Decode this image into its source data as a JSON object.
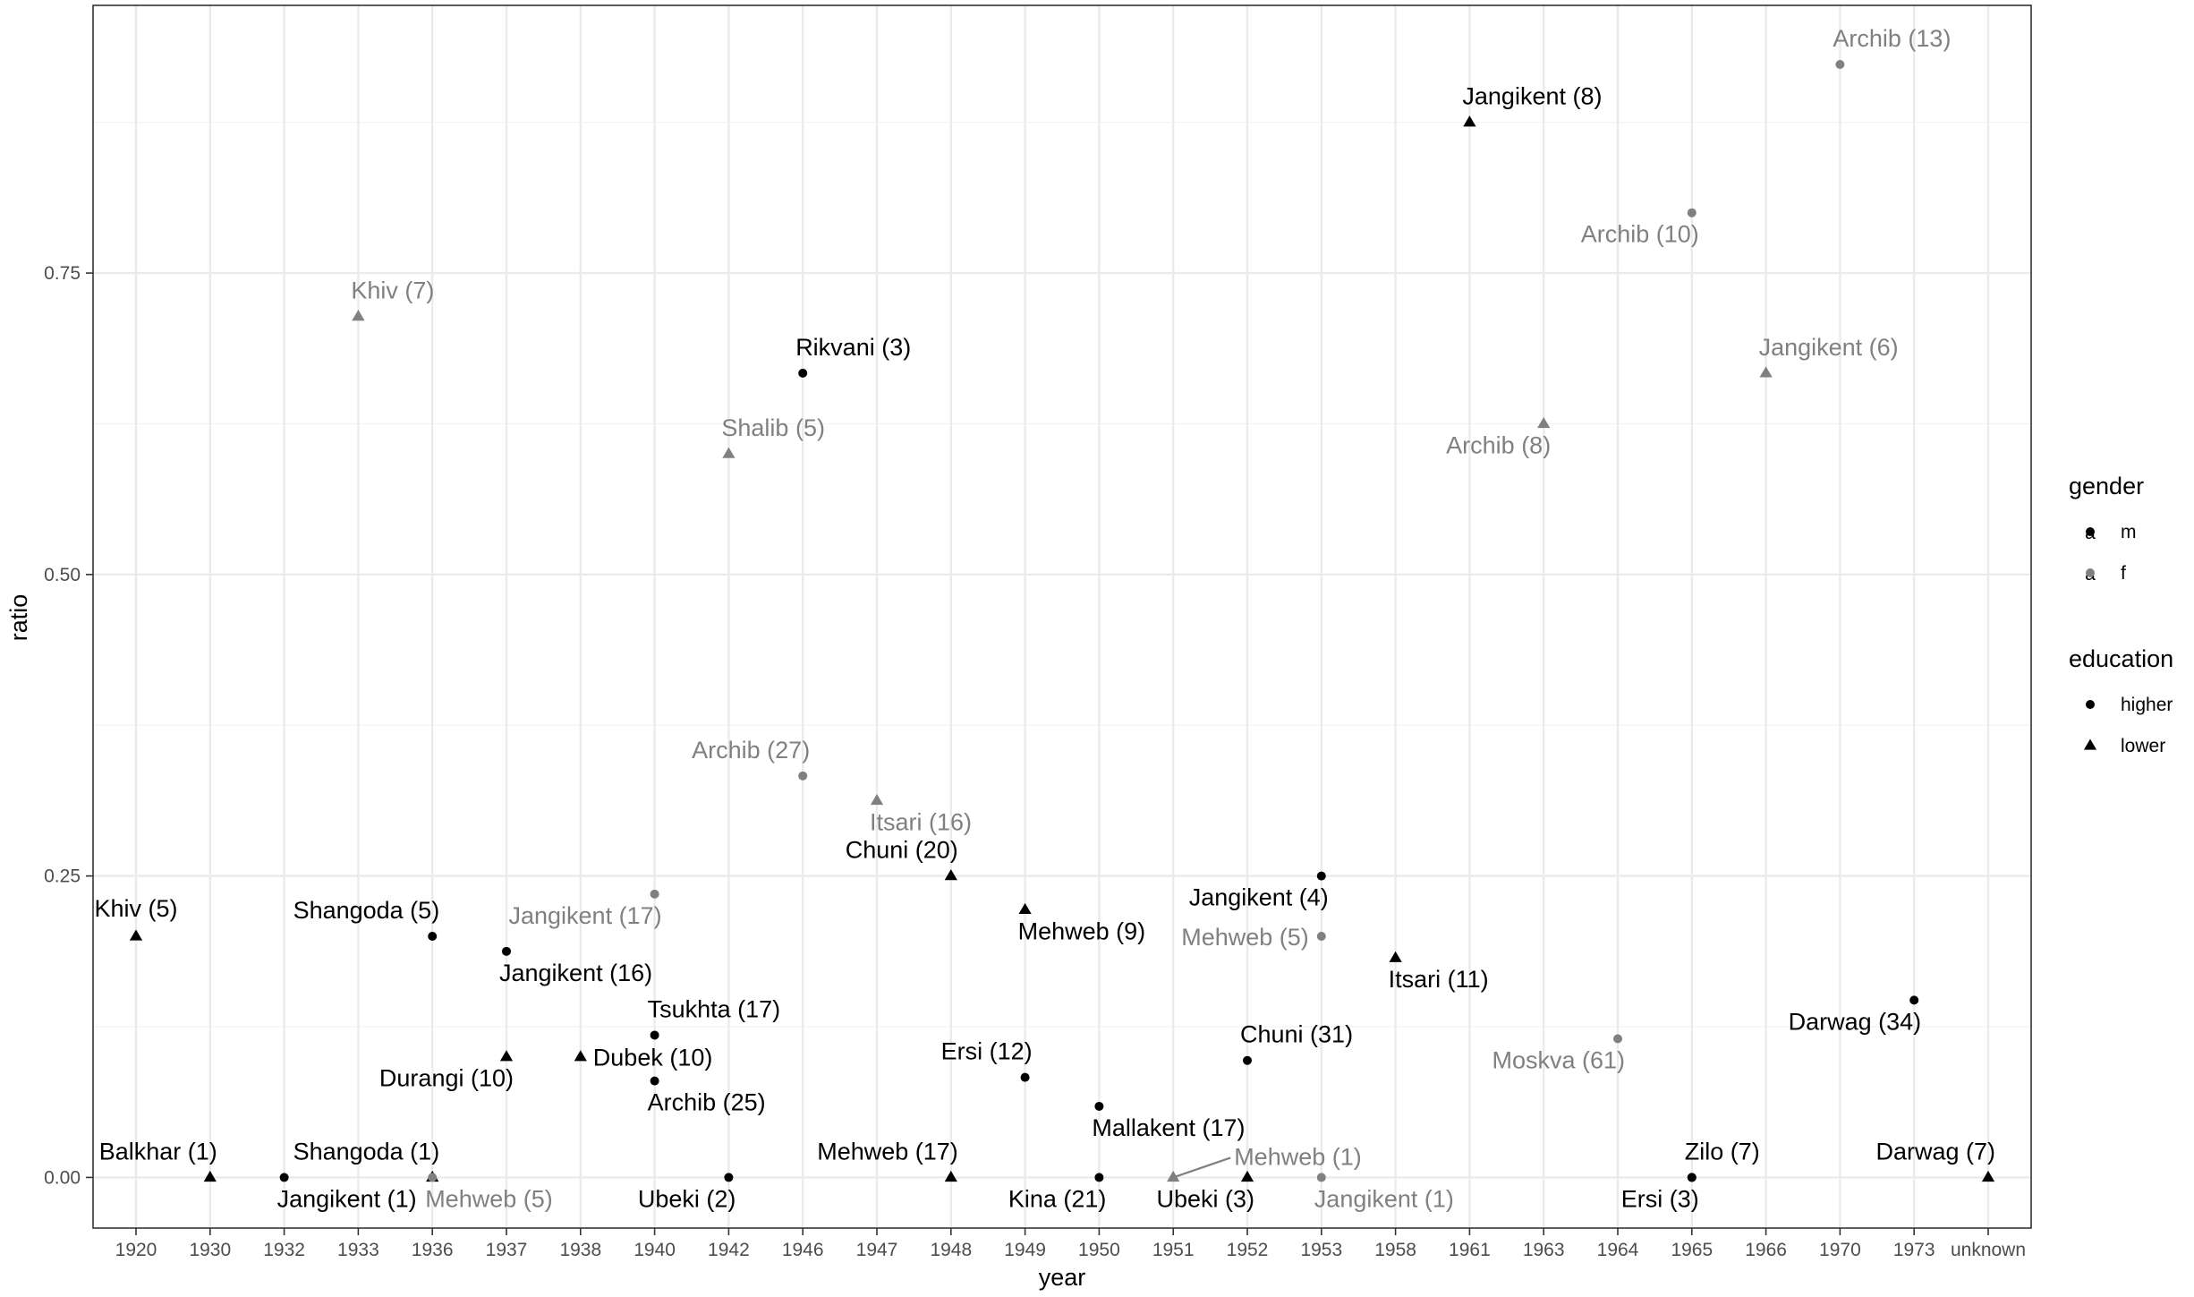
{
  "chart_data": {
    "type": "scatter",
    "xlabel": "year",
    "ylabel": "ratio",
    "x_categories": [
      "1920",
      "1930",
      "1932",
      "1933",
      "1936",
      "1937",
      "1938",
      "1940",
      "1942",
      "1946",
      "1947",
      "1948",
      "1949",
      "1950",
      "1951",
      "1952",
      "1953",
      "1958",
      "1961",
      "1963",
      "1964",
      "1965",
      "1966",
      "1970",
      "1973",
      "unknown"
    ],
    "ylim": [
      -0.042,
      0.972
    ],
    "y_ticks": [
      0.0,
      0.25,
      0.5,
      0.75
    ],
    "y_tick_labels": [
      "0.00",
      "0.25",
      "0.50",
      "0.75"
    ],
    "grid": true,
    "colors": {
      "m": "#000000",
      "f": "#808080"
    },
    "legend": {
      "placement": "right",
      "gender_title": "gender",
      "gender_items": [
        {
          "key": "m",
          "label": "m",
          "color": "#000000"
        },
        {
          "key": "f",
          "label": "f",
          "color": "#808080"
        }
      ],
      "gender_glyph": "a",
      "education_title": "education",
      "education_items": [
        {
          "key": "higher",
          "label": "higher",
          "shape": "circle"
        },
        {
          "key": "lower",
          "label": "lower",
          "shape": "triangle"
        }
      ]
    },
    "points": [
      {
        "x": "1920",
        "y": 0.2,
        "gender": "m",
        "education": "lower",
        "label": "Khiv (5)",
        "pos": "above"
      },
      {
        "x": "1930",
        "y": 0.0,
        "gender": "m",
        "education": "lower",
        "label": "Balkhar (1)",
        "pos": "above-left"
      },
      {
        "x": "1932",
        "y": 0.0,
        "gender": "m",
        "education": "higher",
        "label": "Jangikent (1)",
        "pos": "below-right"
      },
      {
        "x": "1933",
        "y": 0.714,
        "gender": "f",
        "education": "lower",
        "label": "Khiv (7)",
        "pos": "above-right"
      },
      {
        "x": "1936",
        "y": 0.2,
        "gender": "m",
        "education": "higher",
        "label": "Shangoda (5)",
        "pos": "above-left"
      },
      {
        "x": "1936",
        "y": 0.0,
        "gender": "m",
        "education": "lower",
        "label": "Shangoda (1)",
        "pos": "above-left"
      },
      {
        "x": "1936",
        "y": 0.0,
        "gender": "f",
        "education": "higher",
        "label": "Mehweb (5)",
        "pos": "below-right"
      },
      {
        "x": "1937",
        "y": 0.1875,
        "gender": "m",
        "education": "higher",
        "label": "Jangikent (16)",
        "pos": "below-right"
      },
      {
        "x": "1937",
        "y": 0.1,
        "gender": "m",
        "education": "lower",
        "label": "Durangi (10)",
        "pos": "below-left"
      },
      {
        "x": "1938",
        "y": 0.1,
        "gender": "m",
        "education": "lower",
        "label": "Dubek (10)",
        "pos": "right"
      },
      {
        "x": "1940",
        "y": 0.235,
        "gender": "f",
        "education": "higher",
        "label": "Jangikent (17)",
        "pos": "below-left"
      },
      {
        "x": "1940",
        "y": 0.118,
        "gender": "m",
        "education": "higher",
        "label": "Tsukhta (17)",
        "pos": "above-right"
      },
      {
        "x": "1940",
        "y": 0.08,
        "gender": "m",
        "education": "higher",
        "label": "Archib (25)",
        "pos": "below-right"
      },
      {
        "x": "1942",
        "y": 0.6,
        "gender": "f",
        "education": "lower",
        "label": "Shalib (5)",
        "pos": "above-right"
      },
      {
        "x": "1942",
        "y": 0.0,
        "gender": "m",
        "education": "higher",
        "label": "Ubeki (2)",
        "pos": "below-left"
      },
      {
        "x": "1946",
        "y": 0.667,
        "gender": "m",
        "education": "higher",
        "label": "Rikvani (3)",
        "pos": "above-right"
      },
      {
        "x": "1946",
        "y": 0.333,
        "gender": "f",
        "education": "higher",
        "label": "Archib (27)",
        "pos": "above-left"
      },
      {
        "x": "1947",
        "y": 0.3125,
        "gender": "f",
        "education": "lower",
        "label": "Itsari (16)",
        "pos": "below-right"
      },
      {
        "x": "1948",
        "y": 0.25,
        "gender": "m",
        "education": "lower",
        "label": "Chuni (20)",
        "pos": "above-left"
      },
      {
        "x": "1948",
        "y": 0.0,
        "gender": "m",
        "education": "lower",
        "label": "Mehweb (17)",
        "pos": "above-left"
      },
      {
        "x": "1949",
        "y": 0.222,
        "gender": "m",
        "education": "lower",
        "label": "Mehweb (9)",
        "pos": "below-right"
      },
      {
        "x": "1949",
        "y": 0.083,
        "gender": "m",
        "education": "higher",
        "label": "Ersi (12)",
        "pos": "above-left"
      },
      {
        "x": "1950",
        "y": 0.059,
        "gender": "m",
        "education": "higher",
        "label": "Mallakent (17)",
        "pos": "below-right"
      },
      {
        "x": "1950",
        "y": 0.0,
        "gender": "m",
        "education": "higher",
        "label": "Kina (21)",
        "pos": "below-left"
      },
      {
        "x": "1951",
        "y": 0.0,
        "gender": "f",
        "education": "lower",
        "label": "Mehweb (1)",
        "pos": "leader"
      },
      {
        "x": "1952",
        "y": 0.0,
        "gender": "m",
        "education": "lower",
        "label": "Ubeki (3)",
        "pos": "below-left"
      },
      {
        "x": "1952",
        "y": 0.097,
        "gender": "m",
        "education": "higher",
        "label": "Chuni (31)",
        "pos": "above-right"
      },
      {
        "x": "1953",
        "y": 0.25,
        "gender": "m",
        "education": "higher",
        "label": "Jangikent (4)",
        "pos": "below-left"
      },
      {
        "x": "1953",
        "y": 0.2,
        "gender": "f",
        "education": "higher",
        "label": "Mehweb (5)",
        "pos": "left"
      },
      {
        "x": "1953",
        "y": 0.0,
        "gender": "f",
        "education": "higher",
        "label": "Jangikent (1)",
        "pos": "below-right"
      },
      {
        "x": "1958",
        "y": 0.182,
        "gender": "m",
        "education": "lower",
        "label": "Itsari (11)",
        "pos": "below-right"
      },
      {
        "x": "1961",
        "y": 0.875,
        "gender": "m",
        "education": "lower",
        "label": "Jangikent (8)",
        "pos": "above-right"
      },
      {
        "x": "1963",
        "y": 0.625,
        "gender": "f",
        "education": "lower",
        "label": "Archib (8)",
        "pos": "below-left"
      },
      {
        "x": "1964",
        "y": 0.115,
        "gender": "f",
        "education": "higher",
        "label": "Moskva (61)",
        "pos": "below-left"
      },
      {
        "x": "1965",
        "y": 0.8,
        "gender": "f",
        "education": "higher",
        "label": "Archib (10)",
        "pos": "below-left"
      },
      {
        "x": "1965",
        "y": 0.0,
        "gender": "m",
        "education": "higher",
        "label": "Zilo (7)",
        "pos": "above-right"
      },
      {
        "x": "1965",
        "y": 0.0,
        "gender": "m",
        "education": "higher",
        "label": "Ersi (3)",
        "pos": "below-left"
      },
      {
        "x": "1966",
        "y": 0.667,
        "gender": "f",
        "education": "lower",
        "label": "Jangikent (6)",
        "pos": "above-right"
      },
      {
        "x": "1970",
        "y": 0.923,
        "gender": "f",
        "education": "higher",
        "label": "Archib (13)",
        "pos": "above-right"
      },
      {
        "x": "1973",
        "y": 0.147,
        "gender": "m",
        "education": "higher",
        "label": "Darwag (34)",
        "pos": "below-left"
      },
      {
        "x": "unknown",
        "y": 0.0,
        "gender": "m",
        "education": "lower",
        "label": "Darwag (7)",
        "pos": "above-left"
      }
    ]
  }
}
